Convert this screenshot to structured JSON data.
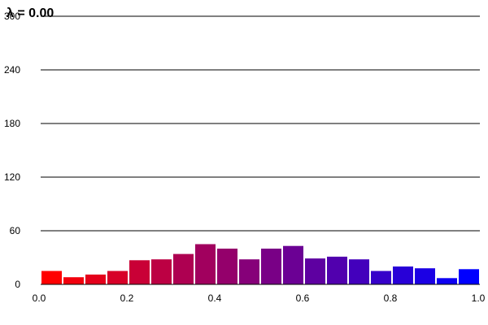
{
  "chart_data": {
    "type": "bar",
    "title": "λ = 0.00",
    "xlabel": "",
    "ylabel": "",
    "xlim": [
      0,
      1
    ],
    "ylim": [
      0,
      300
    ],
    "x_ticks": [
      "0.0",
      "0.2",
      "0.4",
      "0.6",
      "0.8",
      "1.0"
    ],
    "y_ticks": [
      "0",
      "60",
      "120",
      "180",
      "240",
      "300"
    ],
    "grid": "horizontal",
    "bin_width": 0.05,
    "bin_starts": [
      0.0,
      0.05,
      0.1,
      0.15,
      0.2,
      0.25,
      0.3,
      0.35,
      0.4,
      0.45,
      0.5,
      0.55,
      0.6,
      0.65,
      0.7,
      0.75,
      0.8,
      0.85,
      0.9,
      0.95
    ],
    "values": [
      15,
      8,
      11,
      15,
      27,
      28,
      34,
      45,
      40,
      28,
      40,
      43,
      29,
      31,
      28,
      15,
      20,
      18,
      7,
      17
    ],
    "color_start": "#ff0000",
    "color_end": "#0000ff"
  }
}
